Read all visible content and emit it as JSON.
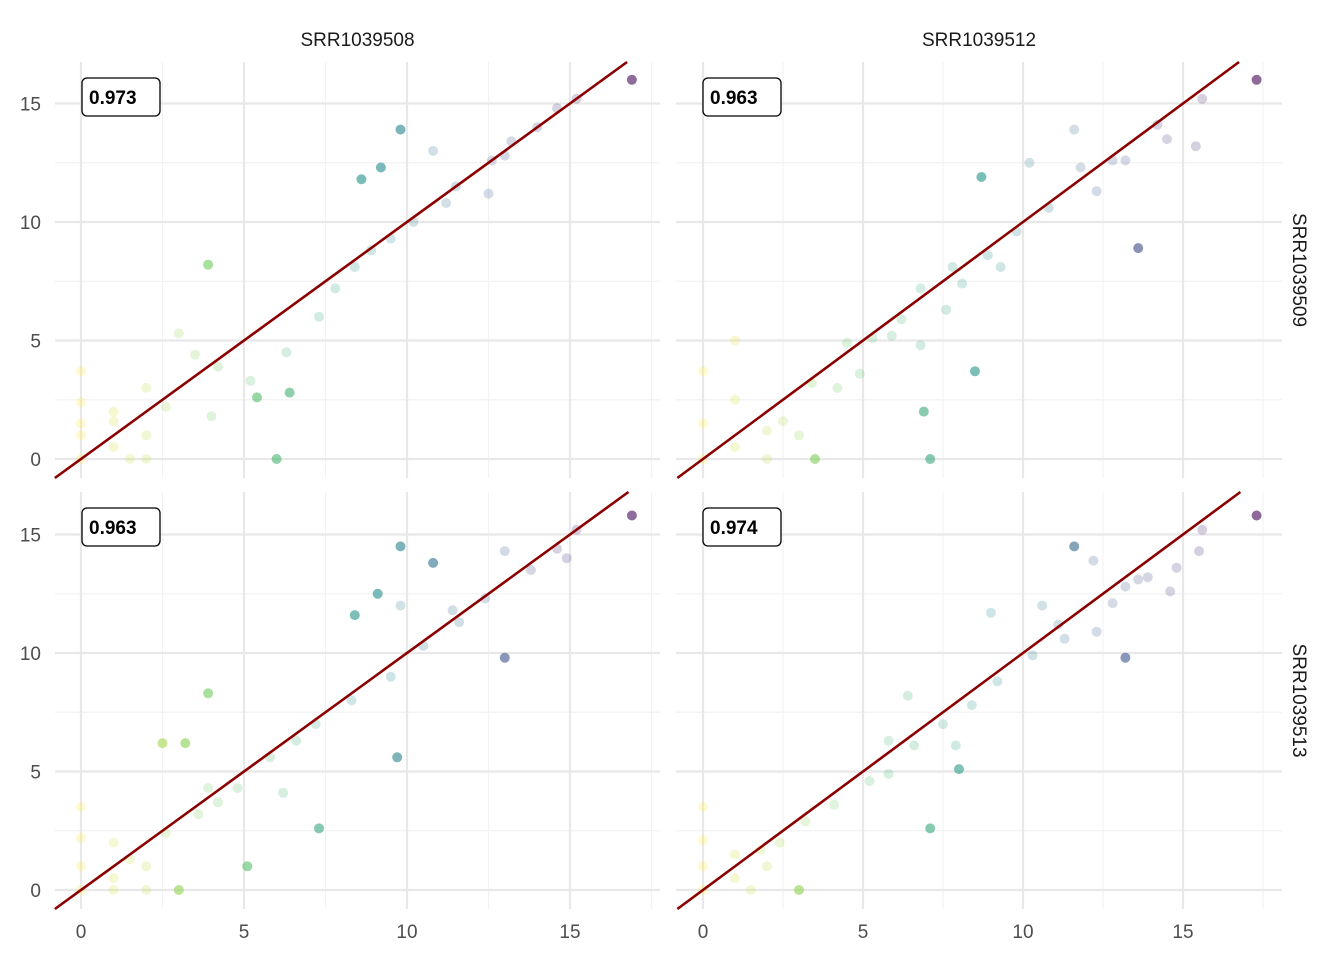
{
  "chart_data": {
    "type": "scatter",
    "facet_columns": [
      "SRR1039508",
      "SRR1039512"
    ],
    "facet_rows": [
      "SRR1039509",
      "SRR1039513"
    ],
    "xlim": [
      -0.8,
      18.2
    ],
    "x_ticks": [
      "0",
      "5",
      "10",
      "15"
    ],
    "ylim": [
      -0.8,
      16.8
    ],
    "y_ticks": [
      "0",
      "5",
      "10",
      "15"
    ],
    "reference_line": {
      "intercept": 0,
      "slope": 1,
      "color": "#8b0000"
    },
    "grid": true,
    "color_scale": "viridis (by x)",
    "panels": [
      {
        "column": "SRR1039508",
        "row": "SRR1039509",
        "label": "0.973",
        "points": [
          [
            16.9,
            16.0
          ],
          [
            15.2,
            15.2
          ],
          [
            9.8,
            13.9
          ],
          [
            3.9,
            8.2
          ],
          [
            6.0,
            0.0
          ],
          [
            9.2,
            12.3
          ],
          [
            10.8,
            13.0
          ],
          [
            13.0,
            12.8
          ],
          [
            12.5,
            11.2
          ],
          [
            8.6,
            11.8
          ],
          [
            11.2,
            10.8
          ],
          [
            4.2,
            3.9
          ],
          [
            3.0,
            5.3
          ],
          [
            2.0,
            3.0
          ],
          [
            1.0,
            1.6
          ],
          [
            0.0,
            1.0
          ],
          [
            0.0,
            2.4
          ],
          [
            1.5,
            0.0
          ],
          [
            2.0,
            0.0
          ],
          [
            0.0,
            0.0
          ],
          [
            7.3,
            6.0
          ],
          [
            8.4,
            8.1
          ],
          [
            9.5,
            9.3
          ],
          [
            6.3,
            4.5
          ],
          [
            5.2,
            3.3
          ],
          [
            4.0,
            1.8
          ],
          [
            5.4,
            2.6
          ],
          [
            6.4,
            2.8
          ],
          [
            11.5,
            11.5
          ],
          [
            12.6,
            12.6
          ],
          [
            14.0,
            14.0
          ],
          [
            14.6,
            14.8
          ],
          [
            13.2,
            13.4
          ],
          [
            7.8,
            7.2
          ],
          [
            8.9,
            8.8
          ],
          [
            10.2,
            10.0
          ],
          [
            3.5,
            4.4
          ],
          [
            2.6,
            2.2
          ],
          [
            1.0,
            2.0
          ],
          [
            0.0,
            1.5
          ],
          [
            0.0,
            3.7
          ],
          [
            1.0,
            0.5
          ],
          [
            2.0,
            1.0
          ]
        ]
      },
      {
        "column": "SRR1039512",
        "row": "SRR1039509",
        "label": "0.963",
        "points": [
          [
            17.3,
            16.0
          ],
          [
            15.6,
            15.2
          ],
          [
            11.6,
            13.9
          ],
          [
            13.6,
            8.9
          ],
          [
            7.1,
            0.0
          ],
          [
            10.2,
            12.5
          ],
          [
            8.7,
            11.9
          ],
          [
            15.4,
            13.2
          ],
          [
            11.8,
            12.3
          ],
          [
            14.5,
            13.5
          ],
          [
            13.2,
            12.6
          ],
          [
            12.3,
            11.3
          ],
          [
            8.5,
            3.7
          ],
          [
            6.8,
            4.8
          ],
          [
            6.9,
            2.0
          ],
          [
            1.0,
            5.0
          ],
          [
            0.0,
            1.5
          ],
          [
            1.0,
            2.5
          ],
          [
            2.5,
            1.6
          ],
          [
            3.5,
            0.0
          ],
          [
            3.0,
            1.0
          ],
          [
            2.0,
            0.0
          ],
          [
            0.0,
            0.0
          ],
          [
            7.6,
            6.3
          ],
          [
            8.9,
            8.6
          ],
          [
            9.8,
            9.6
          ],
          [
            6.8,
            7.2
          ],
          [
            5.9,
            5.2
          ],
          [
            4.9,
            3.6
          ],
          [
            4.2,
            3.0
          ],
          [
            3.4,
            3.2
          ],
          [
            10.8,
            10.6
          ],
          [
            12.8,
            12.6
          ],
          [
            14.2,
            14.1
          ],
          [
            9.3,
            8.1
          ],
          [
            8.1,
            7.4
          ],
          [
            6.2,
            5.9
          ],
          [
            5.3,
            5.1
          ],
          [
            7.8,
            8.1
          ],
          [
            4.5,
            4.9
          ],
          [
            0.0,
            3.7
          ],
          [
            1.0,
            0.5
          ],
          [
            2.0,
            1.2
          ]
        ]
      },
      {
        "column": "SRR1039508",
        "row": "SRR1039513",
        "label": "0.963",
        "points": [
          [
            16.9,
            15.8
          ],
          [
            15.2,
            15.2
          ],
          [
            9.8,
            14.5
          ],
          [
            3.9,
            8.3
          ],
          [
            10.8,
            13.8
          ],
          [
            13.0,
            14.3
          ],
          [
            14.9,
            14.0
          ],
          [
            9.1,
            12.5
          ],
          [
            8.4,
            11.6
          ],
          [
            9.8,
            12.0
          ],
          [
            13.0,
            9.8
          ],
          [
            9.7,
            5.6
          ],
          [
            7.3,
            2.6
          ],
          [
            4.2,
            3.7
          ],
          [
            3.9,
            4.3
          ],
          [
            2.5,
            6.2
          ],
          [
            3.2,
            6.2
          ],
          [
            6.2,
            4.1
          ],
          [
            5.1,
            1.0
          ],
          [
            0.0,
            3.5
          ],
          [
            0.0,
            2.2
          ],
          [
            1.0,
            2.0
          ],
          [
            2.0,
            1.0
          ],
          [
            2.0,
            0.0
          ],
          [
            0.0,
            0.0
          ],
          [
            1.0,
            0.0
          ],
          [
            3.0,
            0.0
          ],
          [
            8.3,
            8.0
          ],
          [
            9.5,
            9.0
          ],
          [
            10.5,
            10.3
          ],
          [
            11.6,
            11.3
          ],
          [
            12.4,
            12.3
          ],
          [
            13.8,
            13.5
          ],
          [
            14.6,
            14.4
          ],
          [
            7.2,
            7.0
          ],
          [
            6.6,
            6.3
          ],
          [
            5.8,
            5.6
          ],
          [
            4.8,
            4.3
          ],
          [
            3.6,
            3.2
          ],
          [
            2.6,
            2.4
          ],
          [
            1.5,
            1.3
          ],
          [
            0.0,
            1.0
          ],
          [
            1.0,
            0.5
          ],
          [
            11.4,
            11.8
          ]
        ]
      },
      {
        "column": "SRR1039512",
        "row": "SRR1039513",
        "label": "0.974",
        "points": [
          [
            17.3,
            15.8
          ],
          [
            15.6,
            15.2
          ],
          [
            11.6,
            14.5
          ],
          [
            12.2,
            13.9
          ],
          [
            9.0,
            11.7
          ],
          [
            10.6,
            12.0
          ],
          [
            11.1,
            11.2
          ],
          [
            12.3,
            10.9
          ],
          [
            13.2,
            9.8
          ],
          [
            13.6,
            13.1
          ],
          [
            14.8,
            13.6
          ],
          [
            14.6,
            12.6
          ],
          [
            15.5,
            14.3
          ],
          [
            13.9,
            13.2
          ],
          [
            13.2,
            12.8
          ],
          [
            7.9,
            6.1
          ],
          [
            6.4,
            8.2
          ],
          [
            5.8,
            6.3
          ],
          [
            5.8,
            4.9
          ],
          [
            8.0,
            5.1
          ],
          [
            7.1,
            2.6
          ],
          [
            0.0,
            1.0
          ],
          [
            0.0,
            2.1
          ],
          [
            1.0,
            1.5
          ],
          [
            1.5,
            0.0
          ],
          [
            3.0,
            0.0
          ],
          [
            0.0,
            0.0
          ],
          [
            1.0,
            0.5
          ],
          [
            2.0,
            1.0
          ],
          [
            9.2,
            8.8
          ],
          [
            10.3,
            9.9
          ],
          [
            11.3,
            10.6
          ],
          [
            8.4,
            7.8
          ],
          [
            7.5,
            7.0
          ],
          [
            6.6,
            6.1
          ],
          [
            5.2,
            4.6
          ],
          [
            4.1,
            3.6
          ],
          [
            3.2,
            2.9
          ],
          [
            2.4,
            2.0
          ],
          [
            1.8,
            1.7
          ],
          [
            0.0,
            3.5
          ],
          [
            12.8,
            12.1
          ]
        ]
      }
    ]
  }
}
